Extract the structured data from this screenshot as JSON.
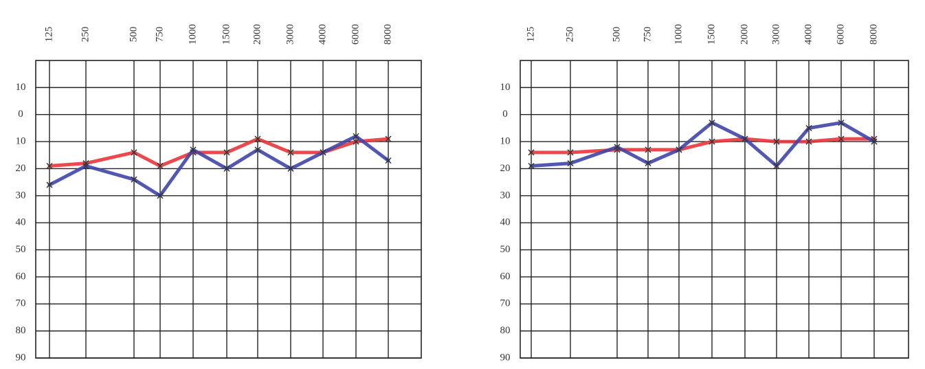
{
  "chart_data": [
    {
      "type": "line",
      "categories": [
        "125",
        "250",
        "500",
        "750",
        "1000",
        "1500",
        "2000",
        "3000",
        "4000",
        "6000",
        "8000"
      ],
      "ylim": [
        -20,
        90
      ],
      "y_inverted": true,
      "yticks": [
        {
          "value": -10,
          "label": "10"
        },
        0,
        10,
        20,
        30,
        40,
        50,
        60,
        70,
        80,
        90
      ],
      "grid": true,
      "series": [
        {
          "color": "#e8363a",
          "values": [
            19,
            18,
            14,
            19,
            14,
            14,
            9,
            14,
            14,
            10,
            9
          ]
        },
        {
          "color": "#3f46a8",
          "values": [
            26,
            19,
            24,
            30,
            13,
            20,
            13,
            20,
            14,
            8,
            17
          ]
        }
      ]
    },
    {
      "type": "line",
      "categories": [
        "125",
        "250",
        "500",
        "750",
        "1000",
        "1500",
        "2000",
        "3000",
        "4000",
        "6000",
        "8000"
      ],
      "ylim": [
        -20,
        90
      ],
      "y_inverted": true,
      "yticks": [
        {
          "value": -10,
          "label": "10"
        },
        0,
        10,
        20,
        30,
        40,
        50,
        60,
        70,
        80,
        90
      ],
      "grid": true,
      "series": [
        {
          "color": "#e8363a",
          "values": [
            14,
            14,
            13,
            13,
            13,
            10,
            9,
            10,
            10,
            9,
            9
          ]
        },
        {
          "color": "#3f46a8",
          "values": [
            19,
            18,
            12,
            18,
            13,
            3,
            9,
            19,
            5,
            3,
            10
          ]
        }
      ]
    }
  ]
}
